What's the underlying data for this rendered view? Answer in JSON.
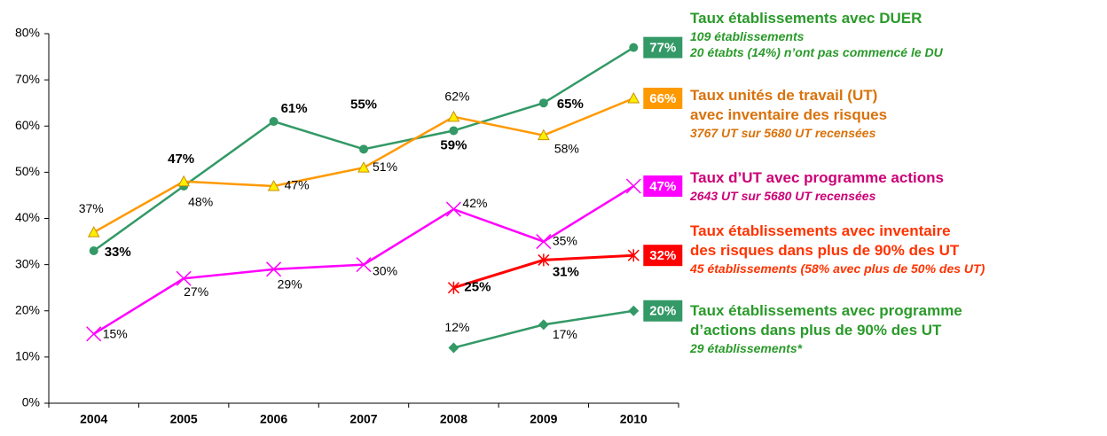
{
  "chart_data": {
    "type": "line",
    "categories": [
      "2004",
      "2005",
      "2006",
      "2007",
      "2008",
      "2009",
      "2010"
    ],
    "ylim": [
      0,
      80
    ],
    "yticks": [
      {
        "value": 0,
        "label": "0%"
      },
      {
        "value": 10,
        "label": "10%"
      },
      {
        "value": 20,
        "label": "20%"
      },
      {
        "value": 30,
        "label": "30%"
      },
      {
        "value": 40,
        "label": "40%"
      },
      {
        "value": 50,
        "label": "50%"
      },
      {
        "value": 60,
        "label": "60%"
      },
      {
        "value": 70,
        "label": "70%"
      },
      {
        "value": 80,
        "label": "80%"
      }
    ],
    "grid": false,
    "series": [
      {
        "name": "Taux établissements avec DUER",
        "details": [
          "109 établissements",
          "20 étabts (14%) n’ont pas commencé le DU"
        ],
        "color": "#339966",
        "text_color": "#2a9a2a",
        "marker": "circle",
        "values": [
          33,
          47,
          61,
          55,
          59,
          65,
          77
        ],
        "value_labels": [
          "33%",
          "47%",
          "61%",
          "55%",
          "59%",
          "65%",
          "77%"
        ]
      },
      {
        "name": "Taux unités de travail (UT)\navec inventaire des risques",
        "details": [
          "3767 UT sur 5680 UT recensées"
        ],
        "color": "#ff9900",
        "text_color": "#d9720b",
        "marker": "triangle",
        "values": [
          37,
          48,
          47,
          51,
          62,
          58,
          66
        ],
        "value_labels": [
          "37%",
          "48%",
          "47%",
          "51%",
          "62%",
          "58%",
          "66%"
        ]
      },
      {
        "name": "Taux d’UT avec programme actions",
        "details": [
          "2643 UT sur 5680 UT recensées"
        ],
        "color": "#ff00ff",
        "text_color": "#cc0077",
        "marker": "x",
        "values": [
          15,
          27,
          29,
          30,
          42,
          35,
          47
        ],
        "value_labels": [
          "15%",
          "27%",
          "29%",
          "30%",
          "42%",
          "35%",
          "47%"
        ]
      },
      {
        "name": "Taux établissements avec inventaire\ndes risques dans plus de 90% des UT",
        "details": [
          "45 établissements (58% avec plus de 50% des UT)"
        ],
        "color": "#ff0000",
        "text_color": "#ff3300",
        "marker": "star",
        "values": [
          null,
          null,
          null,
          null,
          25,
          31,
          32
        ],
        "value_labels": [
          null,
          null,
          null,
          null,
          "25%",
          "31%",
          "32%"
        ]
      },
      {
        "name": "Taux établissements avec programme\nd’actions dans plus de 90% des UT",
        "details": [
          "29 établissements*"
        ],
        "color": "#339966",
        "text_color": "#2a9a2a",
        "marker": "diamond",
        "values": [
          null,
          null,
          null,
          null,
          12,
          17,
          20
        ],
        "value_labels": [
          null,
          null,
          null,
          null,
          "12%",
          "17%",
          "20%"
        ]
      }
    ]
  }
}
